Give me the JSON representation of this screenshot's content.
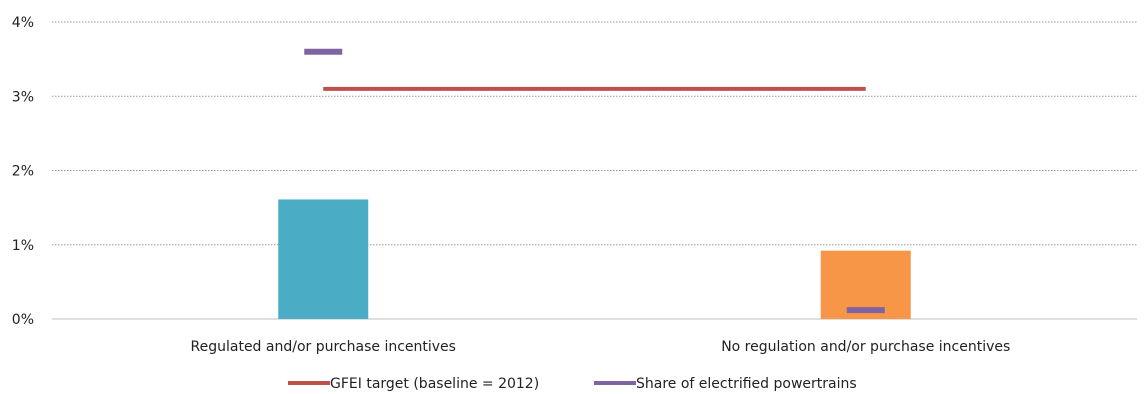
{
  "chart_data": {
    "type": "bar",
    "categories": [
      "Regulated and/or purchase incentives",
      "No regulation and/or purchase incentives"
    ],
    "values": [
      0.0161,
      0.0092
    ],
    "bar_colors": [
      "#4bacc6",
      "#f79646"
    ],
    "y_ticks": [
      "0%",
      "1%",
      "2%",
      "3%",
      "4%"
    ],
    "ylim": [
      0,
      0.04
    ],
    "grid": true,
    "legend_position": "bottom",
    "lines": [
      {
        "name": "GFEI target (baseline = 2012)",
        "color": "#c0504d",
        "value": 0.031,
        "type": "horizontal-line"
      }
    ],
    "markers": [
      {
        "name": "Share of electrified powertrains",
        "color": "#8064a2",
        "values": [
          0.036,
          0.0012
        ],
        "type": "dash-marker"
      }
    ]
  }
}
